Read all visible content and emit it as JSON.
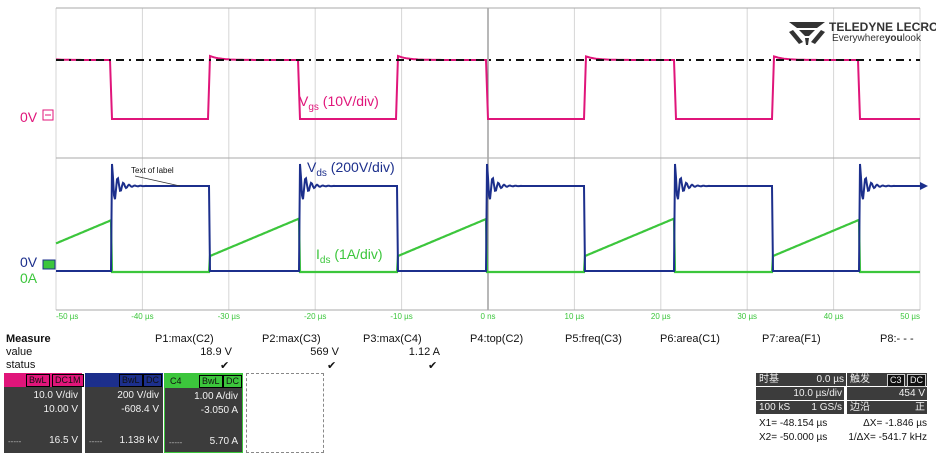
{
  "logo": {
    "brand": "TELEDYNE LECROY",
    "tagline_pre": "Everywhere",
    "tagline_bold": "you",
    "tagline_post": "look"
  },
  "colors": {
    "c1": "#e0157a",
    "c2": "#1c2f8c",
    "c3": "#3cc63c",
    "grid": "#d6d6d6",
    "panel": "#3c3c3c"
  },
  "traces": {
    "vgs": {
      "name": "V",
      "sub": "gs",
      "scale": "(10V/div)",
      "zero": "0V"
    },
    "vds": {
      "name": "V",
      "sub": "ds",
      "scale": "(200V/div)",
      "zero": "0V"
    },
    "ids": {
      "name": "I",
      "sub": "ds",
      "scale": "(1A/div)",
      "zero": "0A"
    },
    "annotation": "Text of label"
  },
  "x_axis": {
    "ticks": [
      "-50 µs",
      "-40 µs",
      "-30 µs",
      "-20 µs",
      "-10 µs",
      "0 ns",
      "10 µs",
      "20 µs",
      "30 µs",
      "40 µs",
      "50 µs"
    ]
  },
  "measure": {
    "title": "Measure",
    "row_labels": [
      "value",
      "status"
    ],
    "columns": [
      {
        "name": "P1:max(C2)",
        "value": "18.9 V",
        "status": "✔"
      },
      {
        "name": "P2:max(C3)",
        "value": "569 V",
        "status": "✔"
      },
      {
        "name": "P3:max(C4)",
        "value": "1.12 A",
        "status": "✔"
      },
      {
        "name": "P4:top(C2)",
        "value": "",
        "status": ""
      },
      {
        "name": "P5:freq(C3)",
        "value": "",
        "status": ""
      },
      {
        "name": "P6:area(C1)",
        "value": "",
        "status": ""
      },
      {
        "name": "P7:area(F1)",
        "value": "",
        "status": ""
      },
      {
        "name": "P8:- - -",
        "value": "",
        "status": ""
      }
    ]
  },
  "channels": [
    {
      "id": "C2",
      "bwl": "BwL",
      "coupling": "DC1M",
      "vdiv": "10.0 V/div",
      "offset": "10.00 V",
      "dots": "-----",
      "reading": "16.5 V"
    },
    {
      "id": "C3",
      "bwl": "BwL",
      "coupling": "DC",
      "vdiv": "200 V/div",
      "offset": "-608.4 V",
      "dots": "-----",
      "reading": "1.138 kV"
    },
    {
      "id": "C4",
      "bwl": "BwL",
      "coupling": "DC",
      "vdiv": "1.00 A/div",
      "offset": "-3.050 A",
      "dots": "-----",
      "reading": "5.70 A"
    }
  ],
  "timebase": {
    "label": "时基",
    "delay": "0.0 µs",
    "tdiv": "10.0 µs/div",
    "samples": "100 kS",
    "rate": "1 GS/s",
    "trigger_label": "触发",
    "trig_ch": "C3",
    "trig_coupling": "DC",
    "trig_level": "454 V",
    "edge_label": "边沿",
    "edge_slope": "正"
  },
  "cursors": {
    "x1": "X1= -48.154 µs",
    "dx": "ΔX= -1.846 µs",
    "x2": "X2= -50.000 µs",
    "inv_dx": "1/ΔX= -541.7 kHz"
  }
}
